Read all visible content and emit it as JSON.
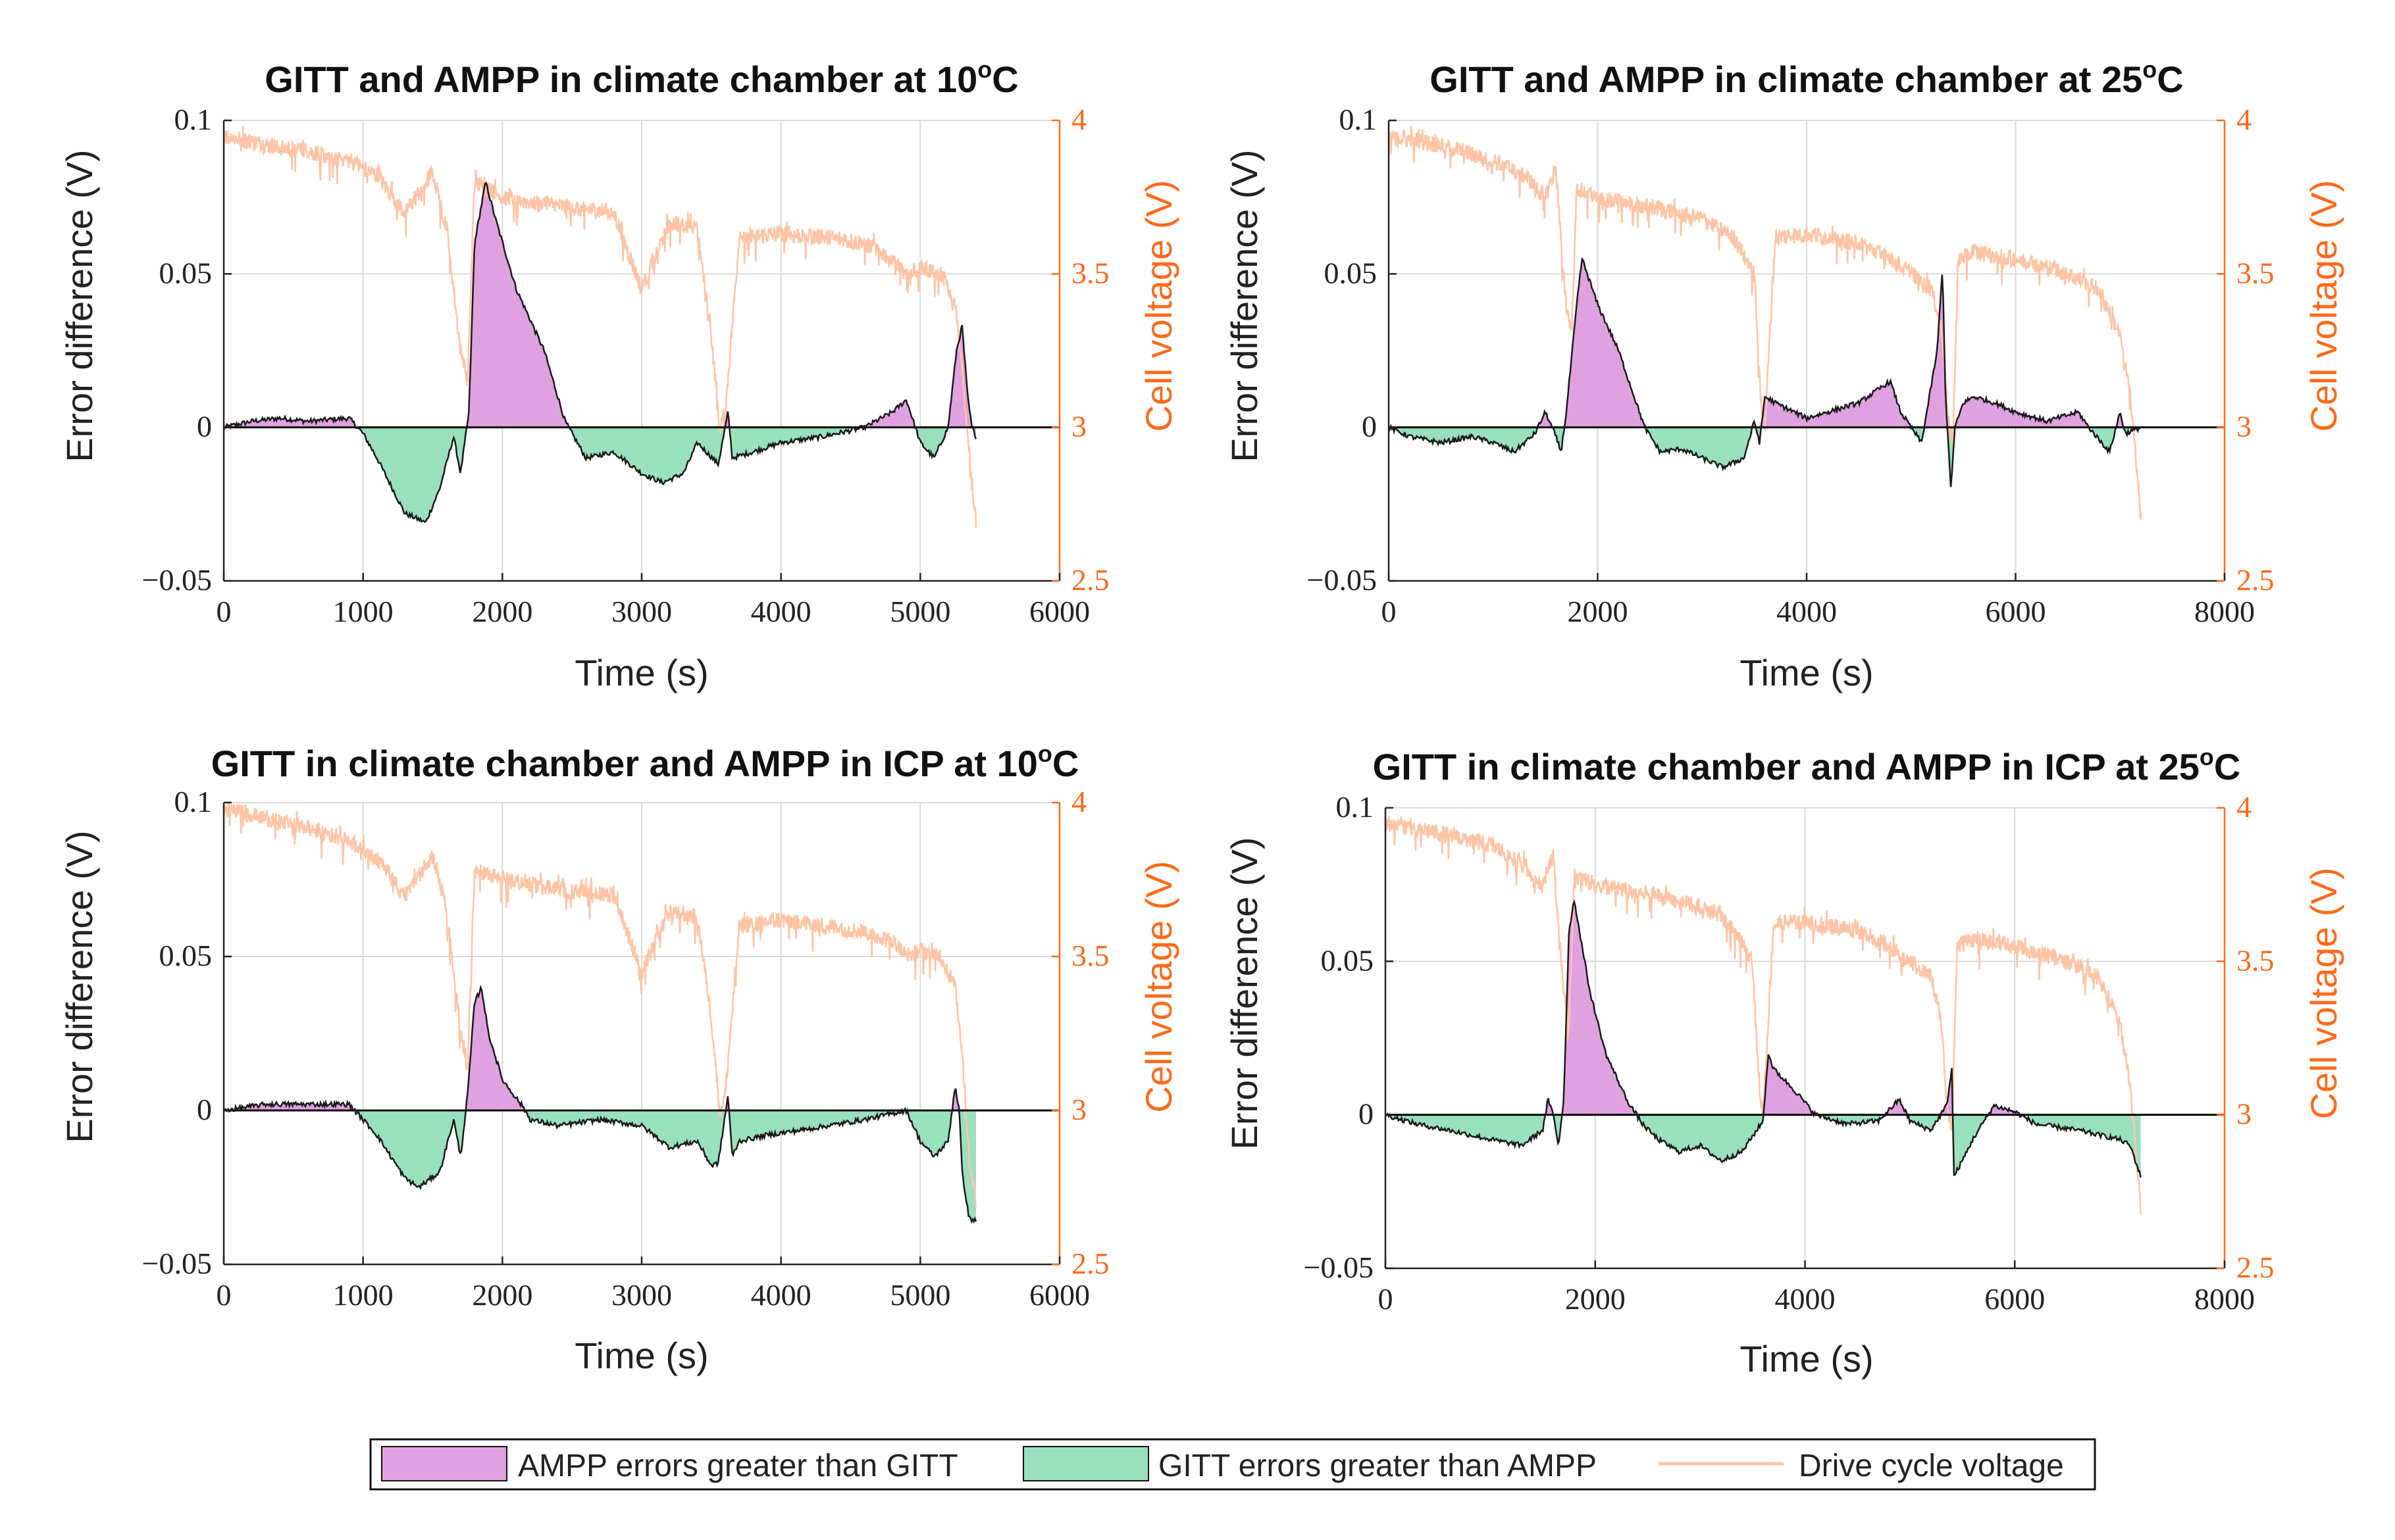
{
  "legend": {
    "ampp_label": "AMPP errors greater than GITT",
    "gitt_label": "GITT errors greater than AMPP",
    "voltage_label": "Drive cycle voltage"
  },
  "colors": {
    "ampp_fill": "#e0a1e0",
    "gitt_fill": "#99e0bd",
    "voltage_line": "#ffc4a6",
    "error_line": "#1a1a1a",
    "right_axis": "#ff6a1a",
    "grid": "#d9d9d9"
  },
  "chart_data": [
    {
      "type": "area",
      "title": "GITT and AMPP in climate chamber at 10",
      "title_degree": "o",
      "title_unit": "C",
      "xlabel": "Time (s)",
      "ylabel": "Error difference (V)",
      "ylabel_right": "Cell voltage (V)",
      "xlim": [
        0,
        6000
      ],
      "ylim": [
        -0.05,
        0.1
      ],
      "ylim_right": [
        2.5,
        4
      ],
      "xticks": [
        "0",
        "1000",
        "2000",
        "3000",
        "4000",
        "5000",
        "6000"
      ],
      "yticks": [
        "−0.05",
        "0",
        "0.05",
        "0.1"
      ],
      "yticks_right": [
        "2.5",
        "3",
        "3.5",
        "4"
      ],
      "grid": true,
      "error_difference": {
        "x": [
          0,
          200,
          400,
          600,
          900,
          1000,
          1100,
          1300,
          1450,
          1550,
          1650,
          1700,
          1760,
          1800,
          1880,
          1950,
          2100,
          2300,
          2450,
          2600,
          2800,
          3000,
          3150,
          3300,
          3400,
          3550,
          3620,
          3650,
          3800,
          4000,
          4300,
          4600,
          4800,
          4900,
          5000,
          5100,
          5200,
          5260,
          5300,
          5340,
          5370,
          5400
        ],
        "y": [
          0.0,
          0.002,
          0.003,
          0.002,
          0.003,
          -0.002,
          -0.01,
          -0.028,
          -0.031,
          -0.02,
          -0.003,
          -0.015,
          0.005,
          0.06,
          0.08,
          0.068,
          0.045,
          0.025,
          0.002,
          -0.01,
          -0.008,
          -0.015,
          -0.018,
          -0.015,
          -0.005,
          -0.012,
          0.005,
          -0.01,
          -0.008,
          -0.005,
          -0.003,
          0.0,
          0.005,
          0.009,
          -0.005,
          -0.01,
          0.0,
          0.025,
          0.033,
          0.01,
          0.0,
          -0.003
        ]
      },
      "cell_voltage": {
        "x": [
          0,
          300,
          600,
          900,
          1100,
          1300,
          1500,
          1600,
          1650,
          1700,
          1750,
          1800,
          2000,
          2400,
          2800,
          3000,
          3200,
          3400,
          3500,
          3560,
          3600,
          3700,
          4000,
          4300,
          4600,
          4800,
          4900,
          5000,
          5150,
          5250,
          5300,
          5350,
          5400
        ],
        "y": [
          3.95,
          3.92,
          3.9,
          3.87,
          3.82,
          3.7,
          3.83,
          3.65,
          3.45,
          3.25,
          3.15,
          3.8,
          3.75,
          3.72,
          3.7,
          3.45,
          3.67,
          3.65,
          3.3,
          3.0,
          3.05,
          3.62,
          3.63,
          3.62,
          3.6,
          3.55,
          3.5,
          3.52,
          3.5,
          3.4,
          3.2,
          2.9,
          2.7
        ]
      }
    },
    {
      "type": "area",
      "title": "GITT and AMPP in climate chamber at 25",
      "title_degree": "o",
      "title_unit": "C",
      "xlabel": "Time (s)",
      "ylabel": "Error difference (V)",
      "ylabel_right": "Cell voltage (V)",
      "xlim": [
        0,
        8000
      ],
      "ylim": [
        -0.05,
        0.1
      ],
      "ylim_right": [
        2.5,
        4
      ],
      "xticks": [
        "0",
        "2000",
        "4000",
        "6000",
        "8000"
      ],
      "yticks": [
        "−0.05",
        "0",
        "0.05",
        "0.1"
      ],
      "yticks_right": [
        "2.5",
        "3",
        "3.5",
        "4"
      ],
      "grid": true,
      "error_difference": {
        "x": [
          0,
          200,
          500,
          800,
          1000,
          1200,
          1400,
          1500,
          1600,
          1650,
          1700,
          1800,
          1850,
          1900,
          2000,
          2200,
          2450,
          2600,
          2800,
          3000,
          3200,
          3400,
          3500,
          3550,
          3600,
          3700,
          4000,
          4200,
          4500,
          4800,
          4900,
          5000,
          5100,
          5250,
          5300,
          5330,
          5380,
          5420,
          5500,
          5600,
          5800,
          6000,
          6300,
          6600,
          6700,
          6900,
          7000,
          7050,
          7200
        ],
        "y": [
          0.0,
          -0.003,
          -0.005,
          -0.003,
          -0.005,
          -0.008,
          -0.002,
          0.005,
          -0.003,
          -0.008,
          0.005,
          0.04,
          0.055,
          0.05,
          0.04,
          0.025,
          0.0,
          -0.008,
          -0.007,
          -0.01,
          -0.013,
          -0.01,
          0.002,
          -0.005,
          0.01,
          0.008,
          0.003,
          0.005,
          0.008,
          0.015,
          0.005,
          0.0,
          -0.005,
          0.025,
          0.052,
          0.01,
          -0.02,
          0.0,
          0.008,
          0.01,
          0.008,
          0.005,
          0.002,
          0.005,
          0.0,
          -0.008,
          0.005,
          -0.002,
          0.0
        ]
      },
      "cell_voltage": {
        "x": [
          0,
          500,
          1000,
          1300,
          1500,
          1600,
          1650,
          1700,
          1750,
          1800,
          2000,
          2500,
          3000,
          3300,
          3500,
          3560,
          3600,
          3700,
          4000,
          4500,
          4800,
          5000,
          5200,
          5300,
          5350,
          5400,
          5450,
          5600,
          6000,
          6500,
          6800,
          7000,
          7100,
          7200
        ],
        "y": [
          3.95,
          3.92,
          3.87,
          3.82,
          3.75,
          3.85,
          3.6,
          3.4,
          3.3,
          3.78,
          3.75,
          3.72,
          3.68,
          3.62,
          3.5,
          3.1,
          3.0,
          3.62,
          3.63,
          3.6,
          3.55,
          3.5,
          3.45,
          3.3,
          3.05,
          2.95,
          3.55,
          3.57,
          3.55,
          3.5,
          3.45,
          3.3,
          3.1,
          2.7
        ]
      }
    },
    {
      "type": "area",
      "title": "GITT in climate chamber and AMPP in ICP at 10",
      "title_degree": "o",
      "title_unit": "C",
      "xlabel": "Time (s)",
      "ylabel": "Error difference (V)",
      "ylabel_right": "Cell voltage (V)",
      "xlim": [
        0,
        6000
      ],
      "ylim": [
        -0.05,
        0.1
      ],
      "ylim_right": [
        2.5,
        4
      ],
      "xticks": [
        "0",
        "1000",
        "2000",
        "3000",
        "4000",
        "5000",
        "6000"
      ],
      "yticks": [
        "−0.05",
        "0",
        "0.05",
        "0.1"
      ],
      "yticks_right": [
        "2.5",
        "3",
        "3.5",
        "4"
      ],
      "grid": true,
      "error_difference": {
        "x": [
          0,
          300,
          600,
          900,
          1000,
          1100,
          1300,
          1400,
          1550,
          1650,
          1700,
          1750,
          1800,
          1850,
          1900,
          2000,
          2150,
          2200,
          2400,
          2700,
          3000,
          3200,
          3400,
          3500,
          3550,
          3620,
          3650,
          3700,
          3900,
          4200,
          4600,
          4900,
          5000,
          5100,
          5200,
          5250,
          5280,
          5300,
          5350,
          5400
        ],
        "y": [
          0.0,
          0.002,
          0.002,
          0.002,
          -0.003,
          -0.008,
          -0.022,
          -0.025,
          -0.02,
          -0.003,
          -0.015,
          0.005,
          0.035,
          0.04,
          0.025,
          0.01,
          0.001,
          -0.003,
          -0.005,
          -0.003,
          -0.005,
          -0.012,
          -0.01,
          -0.018,
          -0.017,
          0.005,
          -0.015,
          -0.01,
          -0.008,
          -0.006,
          -0.003,
          0.0,
          -0.01,
          -0.015,
          -0.01,
          0.008,
          0.0,
          -0.02,
          -0.035,
          -0.036
        ]
      },
      "cell_voltage": {
        "x": [
          0,
          300,
          600,
          900,
          1100,
          1300,
          1500,
          1600,
          1650,
          1700,
          1750,
          1800,
          2000,
          2400,
          2800,
          3000,
          3200,
          3400,
          3500,
          3560,
          3600,
          3700,
          4000,
          4300,
          4600,
          4800,
          4900,
          5000,
          5150,
          5250,
          5300,
          5350,
          5400
        ],
        "y": [
          3.98,
          3.95,
          3.92,
          3.88,
          3.82,
          3.7,
          3.83,
          3.65,
          3.45,
          3.25,
          3.15,
          3.78,
          3.75,
          3.72,
          3.7,
          3.45,
          3.65,
          3.63,
          3.3,
          3.0,
          3.05,
          3.6,
          3.62,
          3.6,
          3.58,
          3.55,
          3.5,
          3.52,
          3.5,
          3.4,
          3.2,
          2.85,
          2.7
        ]
      }
    },
    {
      "type": "area",
      "title": "GITT in climate chamber and AMPP in ICP at 25",
      "title_degree": "o",
      "title_unit": "C",
      "xlabel": "Time (s)",
      "ylabel": "Error difference (V)",
      "ylabel_right": "Cell voltage (V)",
      "xlim": [
        0,
        8000
      ],
      "ylim": [
        -0.05,
        0.1
      ],
      "ylim_right": [
        2.5,
        4
      ],
      "xticks": [
        "0",
        "2000",
        "4000",
        "6000",
        "8000"
      ],
      "yticks": [
        "−0.05",
        "0",
        "0.05",
        "0.1"
      ],
      "yticks_right": [
        "2.5",
        "3",
        "3.5",
        "4"
      ],
      "grid": true,
      "error_difference": {
        "x": [
          0,
          300,
          600,
          1000,
          1300,
          1500,
          1550,
          1600,
          1650,
          1700,
          1750,
          1800,
          1850,
          1950,
          2100,
          2300,
          2450,
          2600,
          2800,
          3000,
          3200,
          3400,
          3600,
          3650,
          3700,
          3900,
          4100,
          4400,
          4700,
          4900,
          5000,
          5200,
          5350,
          5400,
          5420,
          5500,
          5600,
          5800,
          6000,
          6200,
          6600,
          7000,
          7100,
          7150,
          7200
        ],
        "y": [
          0.0,
          -0.003,
          -0.005,
          -0.008,
          -0.01,
          -0.005,
          0.005,
          0.0,
          -0.01,
          0.005,
          0.06,
          0.07,
          0.06,
          0.04,
          0.02,
          0.005,
          -0.003,
          -0.008,
          -0.012,
          -0.01,
          -0.015,
          -0.012,
          -0.002,
          0.02,
          0.015,
          0.008,
          0.0,
          -0.003,
          -0.002,
          0.005,
          -0.002,
          -0.005,
          0.003,
          0.015,
          -0.02,
          -0.015,
          -0.008,
          0.003,
          0.001,
          -0.003,
          -0.005,
          -0.008,
          -0.01,
          -0.015,
          -0.02
        ]
      },
      "cell_voltage": {
        "x": [
          0,
          500,
          1000,
          1300,
          1500,
          1600,
          1650,
          1700,
          1750,
          1800,
          2000,
          2500,
          3000,
          3300,
          3500,
          3560,
          3600,
          3700,
          4000,
          4500,
          4800,
          5000,
          5200,
          5300,
          5350,
          5400,
          5450,
          5600,
          6000,
          6500,
          6800,
          7000,
          7100,
          7200
        ],
        "y": [
          3.95,
          3.92,
          3.88,
          3.82,
          3.75,
          3.85,
          3.6,
          3.4,
          3.3,
          3.78,
          3.75,
          3.72,
          3.68,
          3.62,
          3.5,
          3.1,
          3.0,
          3.62,
          3.63,
          3.6,
          3.55,
          3.5,
          3.45,
          3.3,
          3.05,
          2.95,
          3.55,
          3.57,
          3.55,
          3.5,
          3.45,
          3.3,
          3.1,
          2.7
        ]
      }
    }
  ]
}
